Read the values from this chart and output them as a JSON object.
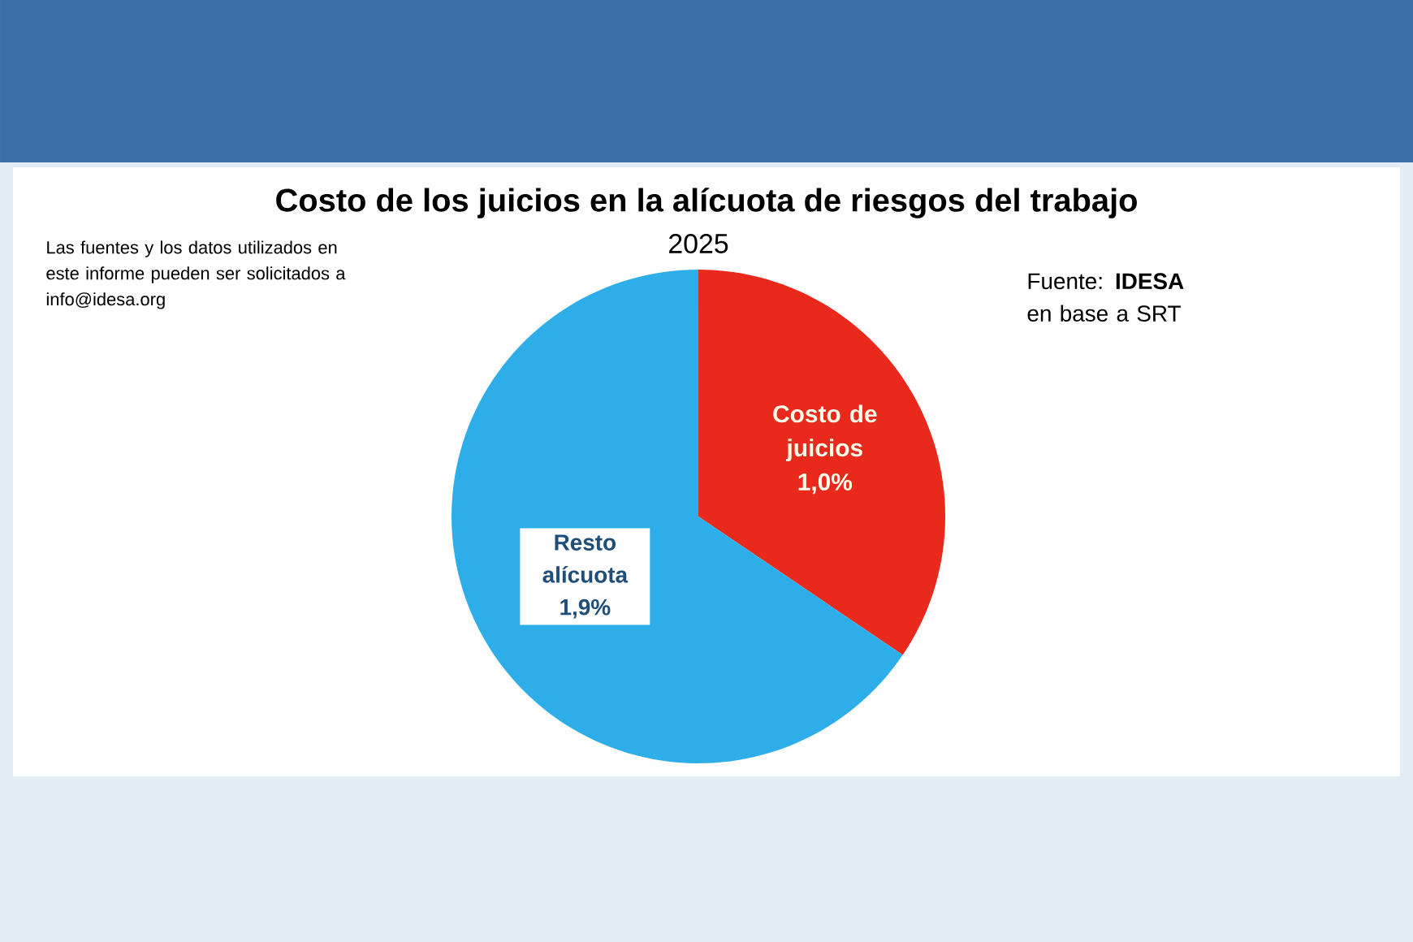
{
  "chart_data": {
    "type": "pie",
    "title": "Costo de los juicios en la alícuota de riesgos del trabajo",
    "subtitle": "2025",
    "categories": [
      "Costo de juicios",
      "Resto alícuota"
    ],
    "values": [
      1.0,
      1.9
    ],
    "value_labels": [
      "1,0%",
      "1,9%"
    ],
    "colors": [
      "#e8291c",
      "#2eaee8"
    ],
    "annotations": [
      "Las fuentes y los datos utilizados en este informe pueden ser solicitados a info@idesa.org",
      "Fuente: **IDESA** en base a SRT"
    ]
  }
}
